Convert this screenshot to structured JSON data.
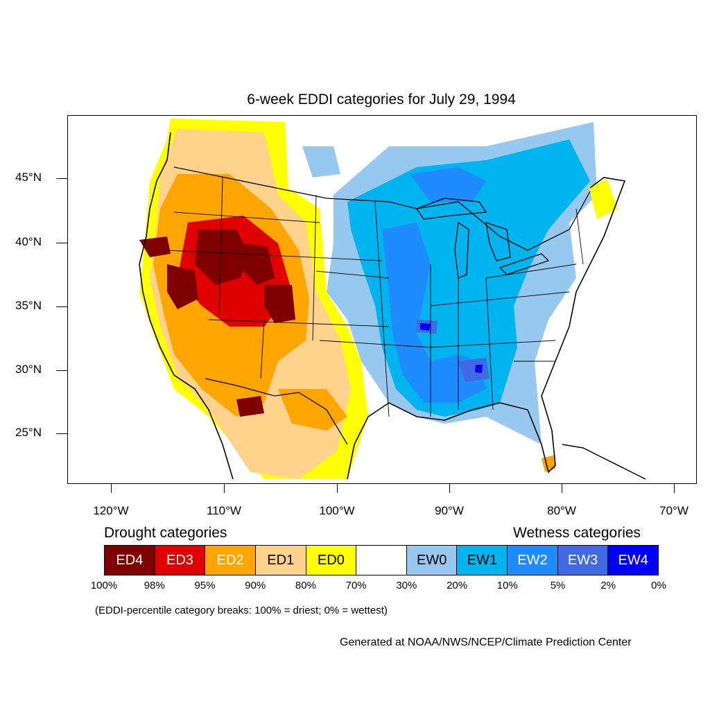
{
  "title": "6-week EDDI categories for July 29, 1994",
  "lat_labels": [
    "45°N",
    "40°N",
    "35°N",
    "30°N",
    "25°N"
  ],
  "lon_labels": [
    "120°W",
    "110°W",
    "100°W",
    "90°W",
    "80°W",
    "70°W"
  ],
  "legend": {
    "drought_title": "Drought categories",
    "wetness_title": "Wetness categories",
    "categories": [
      {
        "label": "ED4",
        "color": "#7f0000",
        "text_color": "#ffffff"
      },
      {
        "label": "ED3",
        "color": "#e00000",
        "text_color": "#ffffff"
      },
      {
        "label": "ED2",
        "color": "#ffa500",
        "text_color": "#ffffff"
      },
      {
        "label": "ED1",
        "color": "#ffd28c",
        "text_color": "#000000"
      },
      {
        "label": "ED0",
        "color": "#ffff00",
        "text_color": "#000000"
      },
      {
        "label": "",
        "color": "#ffffff",
        "text_color": "#000000"
      },
      {
        "label": "EW0",
        "color": "#96c8f0",
        "text_color": "#000000"
      },
      {
        "label": "EW1",
        "color": "#00b4f0",
        "text_color": "#000000"
      },
      {
        "label": "EW2",
        "color": "#1e8cff",
        "text_color": "#ffffff"
      },
      {
        "label": "EW3",
        "color": "#4169e1",
        "text_color": "#ffffff"
      },
      {
        "label": "EW4",
        "color": "#0000ff",
        "text_color": "#ffffff"
      }
    ],
    "breaks": [
      "100%",
      "98%",
      "95%",
      "90%",
      "80%",
      "70%",
      "30%",
      "20%",
      "10%",
      "5%",
      "2%",
      "0%"
    ]
  },
  "note": "(EDDI-percentile category breaks: 100% = driest; 0% = wettest)",
  "credit": "Generated at NOAA/NWS/NCEP/Climate Prediction Center"
}
